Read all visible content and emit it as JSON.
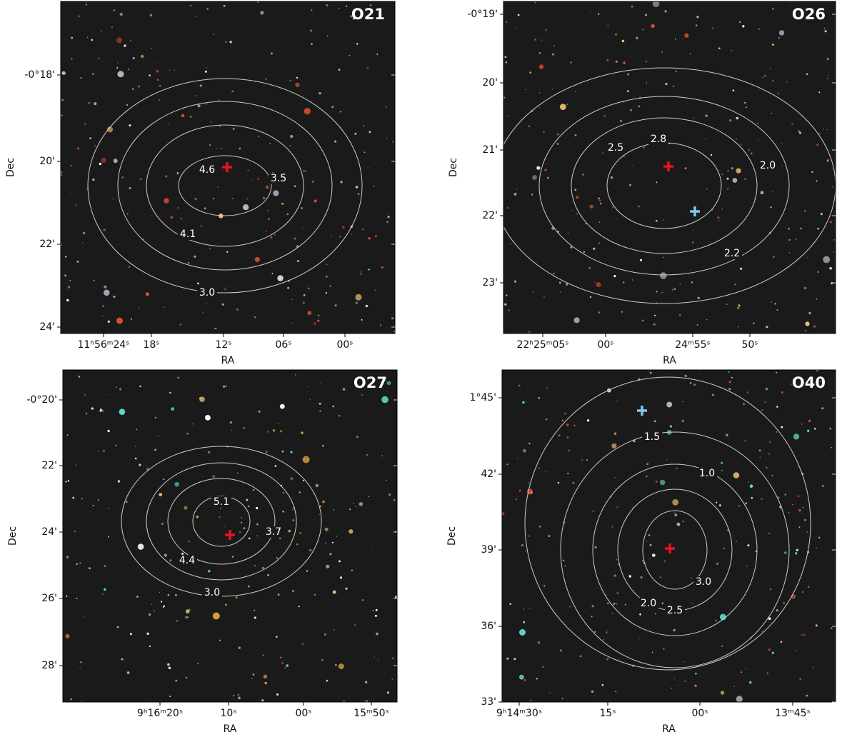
{
  "panels": [
    {
      "label": "O21",
      "x_axis_label": "RA",
      "y_axis_label": "Dec",
      "x_ticks": [
        "11ʰ56ᵐ24ˢ",
        "18ˢ",
        "12ˢ",
        "06ˢ",
        "00ˢ"
      ],
      "y_ticks": [
        "-0°18'",
        "20'",
        "22'",
        "24'"
      ],
      "contour_labels": [
        "4.6",
        "4.1",
        "3.5",
        "3.0"
      ]
    },
    {
      "label": "O26",
      "x_axis_label": "RA",
      "y_axis_label": "Dec",
      "x_ticks": [
        "22ʰ25ᵐ05ˢ",
        "00ˢ",
        "24ᵐ55ˢ",
        "50ˢ"
      ],
      "y_ticks": [
        "-0°19'",
        "20'",
        "21'",
        "22'",
        "23'"
      ],
      "contour_labels": [
        "2.5",
        "2.8",
        "2.0",
        "2.2"
      ]
    },
    {
      "label": "O27",
      "x_axis_label": "RA",
      "y_axis_label": "Dec",
      "x_ticks": [
        "9ʰ16ᵐ20ˢ",
        "10ˢ",
        "00ˢ",
        "15ᵐ50ˢ"
      ],
      "y_ticks": [
        "-0°20'",
        "22'",
        "24'",
        "26'",
        "28'"
      ],
      "contour_labels": [
        "5.1",
        "4.4",
        "3.7",
        "3.0"
      ]
    },
    {
      "label": "O40",
      "x_axis_label": "RA",
      "y_axis_label": "Dec",
      "x_ticks": [
        "9ʰ14ᵐ30ˢ",
        "15ˢ",
        "00ˢ",
        "13ᵐ45ˢ"
      ],
      "y_ticks": [
        "1°45'",
        "42'",
        "39'",
        "36'",
        "33'"
      ],
      "contour_labels": [
        "1.5",
        "1.0",
        "3.0",
        "2.5",
        "2.0"
      ]
    }
  ]
}
